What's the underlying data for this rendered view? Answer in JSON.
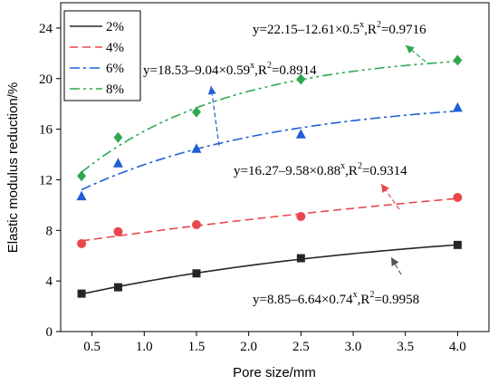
{
  "chart_data": {
    "type": "scatter",
    "xlabel": "Pore size/mm",
    "ylabel": "Elastic modulus reduction/%",
    "xlim": [
      0.2,
      4.3
    ],
    "ylim": [
      0,
      26
    ],
    "xticks": [
      0.5,
      1.0,
      1.5,
      2.0,
      2.5,
      3.0,
      3.5,
      4.0
    ],
    "yticks": [
      0,
      4,
      8,
      12,
      16,
      20,
      24
    ],
    "xtick_labels": [
      "0.5",
      "1.0",
      "1.5",
      "2.0",
      "2.5",
      "3.0",
      "3.5",
      "4.0"
    ],
    "ytick_labels": [
      "0",
      "4",
      "8",
      "12",
      "16",
      "20",
      "24"
    ],
    "legend_position": "top-left",
    "grid": false,
    "series": [
      {
        "name": "2%",
        "color": "#262626",
        "marker": "square",
        "dash": "solid",
        "x": [
          0.4,
          0.75,
          1.5,
          2.5,
          4.0
        ],
        "values": [
          3.0,
          3.5,
          4.6,
          5.8,
          6.85
        ],
        "fit": {
          "a": 8.85,
          "b": 6.64,
          "c": 0.74
        },
        "equation": {
          "y": "y=8.85–6.64×0.74",
          "sup": "x",
          "r": ",R",
          "r2": "2",
          "val": "=0.9958"
        }
      },
      {
        "name": "4%",
        "color": "#e8474c",
        "marker": "circle",
        "dash": "dashed",
        "x": [
          0.4,
          0.75,
          1.5,
          2.5,
          4.0
        ],
        "values": [
          6.95,
          7.9,
          8.45,
          9.1,
          10.6
        ],
        "fit": {
          "a": 16.27,
          "b": 9.58,
          "c": 0.88
        },
        "equation": {
          "y": "y=16.27–9.58×0.88",
          "sup": "x",
          "r": ",R",
          "r2": "2",
          "val": "=0.9314"
        }
      },
      {
        "name": "6%",
        "color": "#1f5fd6",
        "marker": "triangle",
        "dash": "dashdot",
        "x": [
          0.4,
          0.75,
          1.5,
          2.5,
          4.0
        ],
        "values": [
          10.7,
          13.3,
          14.45,
          15.6,
          17.7
        ],
        "fit": {
          "a": 18.53,
          "b": 9.04,
          "c": 0.59
        },
        "equation": {
          "y": "y=18.53–9.04×0.59",
          "sup": "x",
          "r": ",R",
          "r2": "2",
          "val": "=0.8914"
        }
      },
      {
        "name": "8%",
        "color": "#2ea84f",
        "marker": "diamond",
        "dash": "dashdotdot",
        "x": [
          0.4,
          0.75,
          1.5,
          2.5,
          4.0
        ],
        "values": [
          12.3,
          15.35,
          17.35,
          19.95,
          21.45
        ],
        "fit": {
          "a": 22.15,
          "b": 12.61,
          "c": 0.5
        },
        "equation": {
          "y": "y=22.15–12.61×0.5",
          "sup": "x",
          "r": ",R",
          "r2": "2",
          "val": "=0.9716"
        }
      }
    ]
  }
}
